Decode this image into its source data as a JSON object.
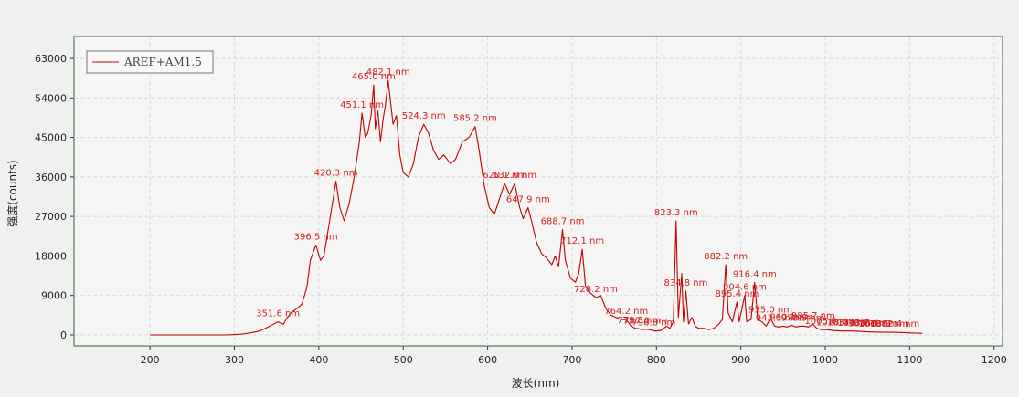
{
  "chart_data": {
    "type": "line",
    "title": "",
    "xlabel": "波长(nm)",
    "ylabel": "强度(counts)",
    "xlim": [
      110,
      1210
    ],
    "ylim": [
      -2500,
      68000
    ],
    "x_ticks": [
      200,
      300,
      400,
      500,
      600,
      700,
      800,
      900,
      1000,
      1100,
      1200
    ],
    "y_ticks": [
      0,
      9000,
      18000,
      27000,
      36000,
      45000,
      54000,
      63000
    ],
    "grid": true,
    "legend_position": "top-left",
    "series": [
      {
        "name": "AREF+AM1.5",
        "color": "#c00000",
        "points": [
          [
            200,
            0
          ],
          [
            250,
            0
          ],
          [
            290,
            0
          ],
          [
            300,
            80
          ],
          [
            310,
            200
          ],
          [
            320,
            500
          ],
          [
            330,
            900
          ],
          [
            340,
            1800
          ],
          [
            351.6,
            3000
          ],
          [
            358,
            2400
          ],
          [
            362,
            3800
          ],
          [
            368,
            5200
          ],
          [
            374,
            6000
          ],
          [
            380,
            7000
          ],
          [
            386,
            11000
          ],
          [
            390,
            17000
          ],
          [
            396.5,
            20500
          ],
          [
            402,
            17000
          ],
          [
            406,
            18000
          ],
          [
            412,
            25000
          ],
          [
            420.3,
            35000
          ],
          [
            425,
            29000
          ],
          [
            430,
            26000
          ],
          [
            436,
            30000
          ],
          [
            442,
            36000
          ],
          [
            448,
            44000
          ],
          [
            451.1,
            50500
          ],
          [
            455,
            45000
          ],
          [
            458,
            46000
          ],
          [
            462,
            50000
          ],
          [
            465.0,
            57000
          ],
          [
            467,
            47000
          ],
          [
            470,
            51000
          ],
          [
            473,
            44000
          ],
          [
            476,
            49000
          ],
          [
            479,
            52500
          ],
          [
            482.1,
            58000
          ],
          [
            485,
            53000
          ],
          [
            488,
            48000
          ],
          [
            492,
            50000
          ],
          [
            496,
            41000
          ],
          [
            500,
            37000
          ],
          [
            506,
            36000
          ],
          [
            512,
            39000
          ],
          [
            518,
            45000
          ],
          [
            524.3,
            48000
          ],
          [
            530,
            46000
          ],
          [
            536,
            42000
          ],
          [
            542,
            40000
          ],
          [
            548,
            41000
          ],
          [
            556,
            39000
          ],
          [
            562,
            40000
          ],
          [
            570,
            44000
          ],
          [
            578,
            45000
          ],
          [
            585.2,
            47500
          ],
          [
            590,
            42000
          ],
          [
            596,
            34000
          ],
          [
            602,
            29000
          ],
          [
            608,
            27500
          ],
          [
            614,
            31000
          ],
          [
            620,
            34500
          ],
          [
            626,
            32000
          ],
          [
            632.0,
            34500
          ],
          [
            638,
            29000
          ],
          [
            642,
            26500
          ],
          [
            647.9,
            29000
          ],
          [
            652,
            26000
          ],
          [
            658,
            21000
          ],
          [
            664,
            18500
          ],
          [
            670,
            17500
          ],
          [
            676,
            16000
          ],
          [
            680,
            18000
          ],
          [
            684,
            15500
          ],
          [
            688.7,
            24000
          ],
          [
            692,
            17000
          ],
          [
            698,
            13000
          ],
          [
            704,
            12000
          ],
          [
            708,
            14000
          ],
          [
            712.1,
            19500
          ],
          [
            716,
            11000
          ],
          [
            722,
            9500
          ],
          [
            728.2,
            8500
          ],
          [
            734,
            9000
          ],
          [
            740,
            6000
          ],
          [
            746,
            4500
          ],
          [
            752,
            4000
          ],
          [
            758,
            3500
          ],
          [
            764.2,
            3500
          ],
          [
            770,
            2000
          ],
          [
            775,
            1500
          ],
          [
            779,
            1400
          ],
          [
            783,
            1200
          ],
          [
            787,
            1300
          ],
          [
            792,
            1200
          ],
          [
            798,
            900
          ],
          [
            805,
            1000
          ],
          [
            812,
            2000
          ],
          [
            816,
            1500
          ],
          [
            820,
            3000
          ],
          [
            823.3,
            26000
          ],
          [
            826,
            4000
          ],
          [
            830,
            14000
          ],
          [
            832,
            3000
          ],
          [
            834.8,
            10000
          ],
          [
            838,
            2500
          ],
          [
            842,
            4000
          ],
          [
            846,
            2000
          ],
          [
            850,
            1500
          ],
          [
            856,
            1500
          ],
          [
            862,
            1200
          ],
          [
            868,
            1500
          ],
          [
            874,
            2500
          ],
          [
            878,
            3500
          ],
          [
            882.2,
            16000
          ],
          [
            885,
            5000
          ],
          [
            890,
            3000
          ],
          [
            895.4,
            7500
          ],
          [
            898,
            3000
          ],
          [
            904.6,
            9000
          ],
          [
            907,
            3000
          ],
          [
            912,
            3500
          ],
          [
            916.4,
            12000
          ],
          [
            920,
            3500
          ],
          [
            925,
            3000
          ],
          [
            930,
            2000
          ],
          [
            935.0,
            3800
          ],
          [
            940,
            2000
          ],
          [
            945,
            1800
          ],
          [
            950,
            2000
          ],
          [
            955,
            1800
          ],
          [
            960,
            2200
          ],
          [
            965,
            1800
          ],
          [
            970,
            2000
          ],
          [
            975,
            2000
          ],
          [
            980,
            1800
          ],
          [
            985,
            2500
          ],
          [
            990,
            1500
          ],
          [
            995,
            1200
          ],
          [
            1000,
            1200
          ],
          [
            1010,
            1000
          ],
          [
            1020,
            900
          ],
          [
            1030,
            900
          ],
          [
            1040,
            800
          ],
          [
            1050,
            700
          ],
          [
            1060,
            650
          ],
          [
            1070,
            600
          ],
          [
            1080,
            600
          ],
          [
            1090,
            550
          ],
          [
            1100,
            450
          ],
          [
            1110,
            400
          ],
          [
            1115,
            350
          ]
        ]
      }
    ],
    "annotations": [
      {
        "x": 351.6,
        "y": 3000,
        "label": "351.6 nm"
      },
      {
        "x": 396.5,
        "y": 20500,
        "label": "396.5 nm"
      },
      {
        "x": 420.3,
        "y": 35000,
        "label": "420.3 nm"
      },
      {
        "x": 451.1,
        "y": 50500,
        "label": "451.1 nm"
      },
      {
        "x": 465.0,
        "y": 57000,
        "label": "465.0 nm"
      },
      {
        "x": 482.1,
        "y": 58000,
        "label": "482.1 nm"
      },
      {
        "x": 524.3,
        "y": 48000,
        "label": "524.3 nm"
      },
      {
        "x": 585.2,
        "y": 47500,
        "label": "585.2 nm"
      },
      {
        "x": 620.1,
        "y": 34500,
        "label": "620.1 nm"
      },
      {
        "x": 632.0,
        "y": 34500,
        "label": "632.0 nm"
      },
      {
        "x": 647.9,
        "y": 29000,
        "label": "647.9 nm"
      },
      {
        "x": 688.7,
        "y": 24000,
        "label": "688.7 nm"
      },
      {
        "x": 712.1,
        "y": 19500,
        "label": "712.1 nm"
      },
      {
        "x": 728.2,
        "y": 8500,
        "label": "728.2 nm"
      },
      {
        "x": 764.2,
        "y": 3500,
        "label": "764.2 nm"
      },
      {
        "x": 779.3,
        "y": 1400,
        "label": "779.3 nm"
      },
      {
        "x": 787.0,
        "y": 1300,
        "label": "787.0 nm"
      },
      {
        "x": 796.8,
        "y": 900,
        "label": "796.8 nm"
      },
      {
        "x": 823.3,
        "y": 26000,
        "label": "823.3 nm"
      },
      {
        "x": 834.8,
        "y": 10000,
        "label": "834.8 nm"
      },
      {
        "x": 882.2,
        "y": 16000,
        "label": "882.2 nm"
      },
      {
        "x": 895.4,
        "y": 7500,
        "label": "895.4 nm"
      },
      {
        "x": 904.6,
        "y": 9000,
        "label": "904.6 nm"
      },
      {
        "x": 916.4,
        "y": 12000,
        "label": "916.4 nm"
      },
      {
        "x": 935.0,
        "y": 3800,
        "label": "935.0 nm"
      },
      {
        "x": 943.3,
        "y": 2000,
        "label": "943.3 nm"
      },
      {
        "x": 960.1,
        "y": 2200,
        "label": "960.1 nm"
      },
      {
        "x": 973.5,
        "y": 2000,
        "label": "973.5 nm"
      },
      {
        "x": 985.7,
        "y": 2500,
        "label": "985.7 nm"
      },
      {
        "x": 1005.0,
        "y": 1200,
        "label": "1005.0 nm"
      },
      {
        "x": 1018.4,
        "y": 900,
        "label": "1018.4 nm"
      },
      {
        "x": 1031.2,
        "y": 900,
        "label": "1031.2 nm"
      },
      {
        "x": 1043.7,
        "y": 800,
        "label": "1043.7 nm"
      },
      {
        "x": 1056.1,
        "y": 700,
        "label": "1056.1 nm"
      },
      {
        "x": 1068.9,
        "y": 600,
        "label": "1068.9 nm"
      },
      {
        "x": 1082.4,
        "y": 600,
        "label": "1082.4 nm"
      }
    ]
  }
}
